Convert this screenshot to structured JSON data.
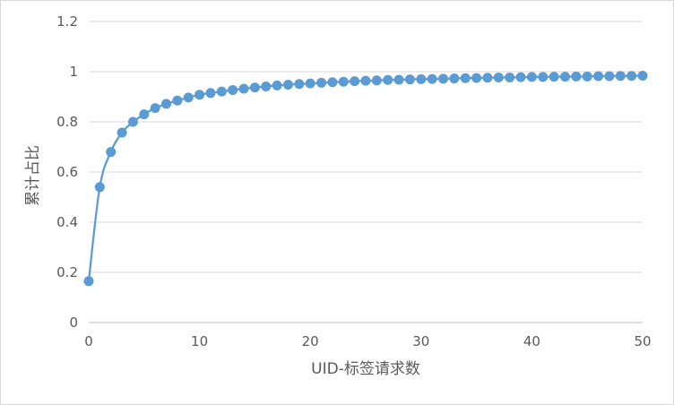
{
  "chart_data": {
    "type": "scatter",
    "title": "",
    "xlabel": "UID-标签请求数",
    "ylabel": "累计占比",
    "xlim": [
      0,
      50
    ],
    "ylim": [
      0,
      1.2
    ],
    "x_ticks": [
      "0",
      "10",
      "20",
      "30",
      "40",
      "50"
    ],
    "y_ticks": [
      "0",
      "0.2",
      "0.4",
      "0.6",
      "0.8",
      "1",
      "1.2"
    ],
    "grid": true,
    "legend": "none",
    "smooth_line": true,
    "series": [
      {
        "color": "#5b9bd5",
        "x": [
          0,
          1,
          2,
          3,
          4,
          5,
          6,
          7,
          8,
          9,
          10,
          11,
          12,
          13,
          14,
          15,
          16,
          17,
          18,
          19,
          20,
          21,
          22,
          23,
          24,
          25,
          26,
          27,
          28,
          29,
          30,
          31,
          32,
          33,
          34,
          35,
          36,
          37,
          38,
          39,
          40,
          41,
          42,
          43,
          44,
          45,
          46,
          47,
          48,
          49,
          50
        ],
        "values": [
          0.165,
          0.54,
          0.68,
          0.757,
          0.8,
          0.83,
          0.855,
          0.872,
          0.885,
          0.897,
          0.908,
          0.915,
          0.921,
          0.927,
          0.932,
          0.937,
          0.941,
          0.945,
          0.948,
          0.951,
          0.953,
          0.956,
          0.958,
          0.96,
          0.962,
          0.964,
          0.965,
          0.967,
          0.968,
          0.969,
          0.97,
          0.971,
          0.972,
          0.973,
          0.974,
          0.975,
          0.976,
          0.977,
          0.977,
          0.978,
          0.979,
          0.979,
          0.98,
          0.98,
          0.981,
          0.981,
          0.982,
          0.982,
          0.983,
          0.983,
          0.984
        ]
      }
    ]
  }
}
